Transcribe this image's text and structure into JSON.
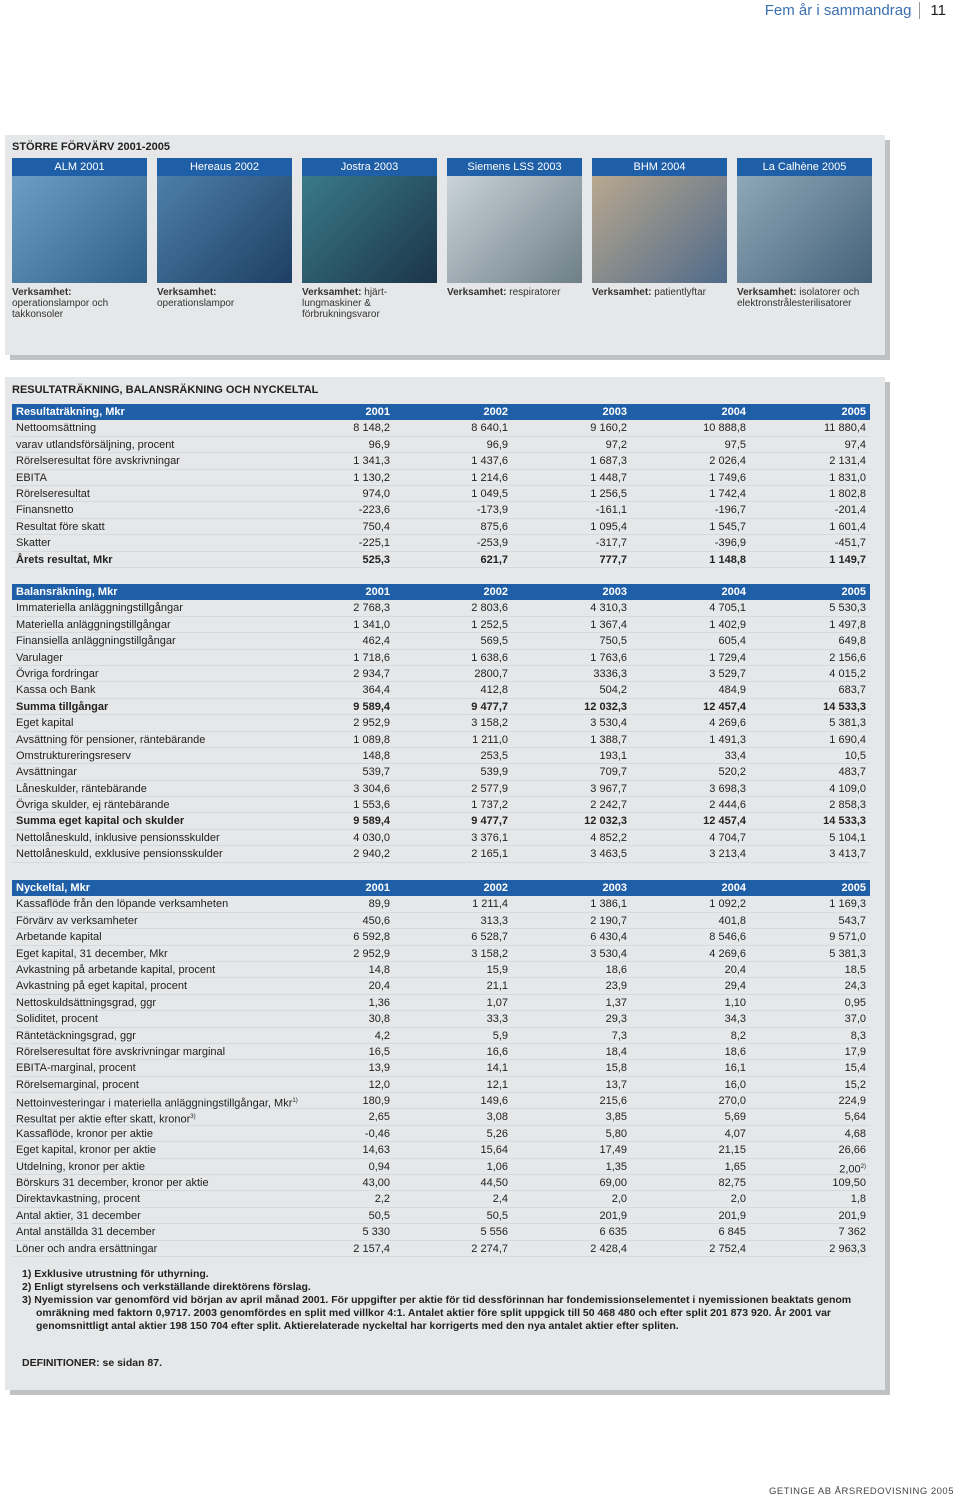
{
  "header": {
    "title": "Fem år i sammandrag",
    "page": "11"
  },
  "acquisitions": {
    "title": "STÖRRE FÖRVÄRV 2001-2005",
    "items": [
      {
        "name": "ALM 2001",
        "label": "Verksamhet:",
        "text": "operationslampor och takkonsoler"
      },
      {
        "name": "Hereaus 2002",
        "label": "Verksamhet:",
        "text": "operationslampor"
      },
      {
        "name": "Jostra 2003",
        "label": "Verksamhet:",
        "text": "hjärt-lungmaskiner & förbrukningsvaror"
      },
      {
        "name": "Siemens LSS 2003",
        "label": "Verksamhet:",
        "text": "respiratorer"
      },
      {
        "name": "BHM 2004",
        "label": "Verksamhet:",
        "text": "patientlyftar"
      },
      {
        "name": "La Calhène 2005",
        "label": "Verksamhet:",
        "text": "isolatorer och elektronstrålesterilisatorer"
      }
    ]
  },
  "section_title": "RESULTATRÄKNING, BALANSRÄKNING OCH NYCKELTAL",
  "tables": [
    {
      "header": [
        "Resultaträkning, Mkr",
        "2001",
        "2002",
        "2003",
        "2004",
        "2005"
      ],
      "rows": [
        {
          "cells": [
            "Nettoomsättning",
            "8 148,2",
            "8 640,1",
            "9 160,2",
            "10 888,8",
            "11 880,4"
          ]
        },
        {
          "cells": [
            "varav utlandsförsäljning, procent",
            "96,9",
            "96,9",
            "97,2",
            "97,5",
            "97,4"
          ]
        },
        {
          "cells": [
            "Rörelseresultat före avskrivningar",
            "1 341,3",
            "1 437,6",
            "1 687,3",
            "2 026,4",
            "2 131,4"
          ]
        },
        {
          "cells": [
            "EBITA",
            "1 130,2",
            "1 214,6",
            "1 448,7",
            "1 749,6",
            "1 831,0"
          ]
        },
        {
          "cells": [
            "Rörelseresultat",
            "974,0",
            "1 049,5",
            "1 256,5",
            "1 742,4",
            "1 802,8"
          ]
        },
        {
          "cells": [
            "Finansnetto",
            "-223,6",
            "-173,9",
            "-161,1",
            "-196,7",
            "-201,4"
          ]
        },
        {
          "cells": [
            "Resultat före skatt",
            "750,4",
            "875,6",
            "1 095,4",
            "1 545,7",
            "1 601,4"
          ]
        },
        {
          "cells": [
            "Skatter",
            "-225,1",
            "-253,9",
            "-317,7",
            "-396,9",
            "-451,7"
          ]
        },
        {
          "cells": [
            "Årets resultat, Mkr",
            "525,3",
            "621,7",
            "777,7",
            "1 148,8",
            "1 149,7"
          ],
          "bold": true
        }
      ]
    },
    {
      "header": [
        "Balansräkning, Mkr",
        "2001",
        "2002",
        "2003",
        "2004",
        "2005"
      ],
      "rows": [
        {
          "cells": [
            "Immateriella anläggningstillgångar",
            "2 768,3",
            "2 803,6",
            "4 310,3",
            "4 705,1",
            "5 530,3"
          ]
        },
        {
          "cells": [
            "Materiella anläggningstillgångar",
            "1 341,0",
            "1 252,5",
            "1 367,4",
            "1 402,9",
            "1 497,8"
          ]
        },
        {
          "cells": [
            "Finansiella anläggningstillgångar",
            "462,4",
            "569,5",
            "750,5",
            "605,4",
            "649,8"
          ]
        },
        {
          "cells": [
            "Varulager",
            "1 718,6",
            "1 638,6",
            "1 763,6",
            "1 729,4",
            "2 156,6"
          ]
        },
        {
          "cells": [
            "Övriga fordringar",
            "2 934,7",
            "2800,7",
            "3336,3",
            "3 529,7",
            "4 015,2"
          ]
        },
        {
          "cells": [
            "Kassa och Bank",
            "364,4",
            "412,8",
            "504,2",
            "484,9",
            "683,7"
          ]
        },
        {
          "cells": [
            "Summa tillgångar",
            "9 589,4",
            "9 477,7",
            "12 032,3",
            "12 457,4",
            "14 533,3"
          ],
          "bold": true
        },
        {
          "cells": [
            "Eget kapital",
            "2 952,9",
            "3 158,2",
            "3 530,4",
            "4 269,6",
            "5 381,3"
          ]
        },
        {
          "cells": [
            "Avsättning  för pensioner, räntebärande",
            "1 089,8",
            "1 211,0",
            "1 388,7",
            "1 491,3",
            "1 690,4"
          ]
        },
        {
          "cells": [
            "Omstruktureringsreserv",
            "148,8",
            "253,5",
            "193,1",
            "33,4",
            "10,5"
          ]
        },
        {
          "cells": [
            "Avsättningar",
            "539,7",
            "539,9",
            "709,7",
            "520,2",
            "483,7"
          ]
        },
        {
          "cells": [
            "Låneskulder, räntebärande",
            "3 304,6",
            "2 577,9",
            "3 967,7",
            "3 698,3",
            "4 109,0"
          ]
        },
        {
          "cells": [
            "Övriga skulder, ej räntebärande",
            "1 553,6",
            "1 737,2",
            "2 242,7",
            "2 444,6",
            "2 858,3"
          ]
        },
        {
          "cells": [
            "Summa eget kapital och skulder",
            "9 589,4",
            "9 477,7",
            "12 032,3",
            "12 457,4",
            "14 533,3"
          ],
          "bold": true
        },
        {
          "cells": [
            "Nettolåneskuld, inklusive pensionsskulder",
            "4 030,0",
            "3 376,1",
            "4 852,2",
            "4 704,7",
            "5 104,1"
          ]
        },
        {
          "cells": [
            "Nettolåneskuld, exklusive pensionsskulder",
            "2 940,2",
            "2 165,1",
            "3 463,5",
            "3 213,4",
            "3 413,7"
          ]
        }
      ]
    },
    {
      "header": [
        "Nyckeltal, Mkr",
        "2001",
        "2002",
        "2003",
        "2004",
        "2005"
      ],
      "rows": [
        {
          "cells": [
            "Kassaflöde från den löpande verksamheten",
            "89,9",
            "1 211,4",
            "1 386,1",
            "1 092,2",
            "1 169,3"
          ]
        },
        {
          "cells": [
            "Förvärv av verksamheter",
            "450,6",
            "313,3",
            "2 190,7",
            "401,8",
            "543,7"
          ]
        },
        {
          "cells": [
            "Arbetande kapital",
            "6 592,8",
            "6 528,7",
            "6 430,4",
            "8 546,6",
            "9 571,0"
          ]
        },
        {
          "cells": [
            "Eget kapital, 31 december, Mkr",
            "2 952,9",
            "3 158,2",
            "3 530,4",
            "4 269,6",
            "5 381,3"
          ]
        },
        {
          "cells": [
            "Avkastning på arbetande kapital, procent",
            "14,8",
            "15,9",
            "18,6",
            "20,4",
            "18,5"
          ]
        },
        {
          "cells": [
            "Avkastning på eget kapital, procent",
            "20,4",
            "21,1",
            "23,9",
            "29,4",
            "24,3"
          ]
        },
        {
          "cells": [
            "Nettoskuldsättningsgrad, ggr",
            "1,36",
            "1,07",
            "1,37",
            "1,10",
            "0,95"
          ]
        },
        {
          "cells": [
            "Soliditet, procent",
            "30,8",
            "33,3",
            "29,3",
            "34,3",
            "37,0"
          ]
        },
        {
          "cells": [
            "Räntetäckningsgrad, ggr",
            "4,2",
            "5,9",
            "7,3",
            "8,2",
            "8,3"
          ]
        },
        {
          "cells": [
            "Rörelseresultat före avskrivningar marginal",
            "16,5",
            "16,6",
            "18,4",
            "18,6",
            "17,9"
          ]
        },
        {
          "cells": [
            "EBITA-marginal, procent",
            "13,9",
            "14,1",
            "15,8",
            "16,1",
            "15,4"
          ]
        },
        {
          "cells": [
            "Rörelsemarginal, procent",
            "12,0",
            "12,1",
            "13,7",
            "16,0",
            "15,2"
          ]
        },
        {
          "cells": [
            {
              "text": "Nettoinvesteringar i materiella anläggningstillgångar, Mkr",
              "sup": "1)"
            },
            "180,9",
            "149,6",
            "215,6",
            "270,0",
            "224,9"
          ]
        },
        {
          "cells": [
            {
              "text": "Resultat per aktie efter skatt, kronor",
              "sup": "3)"
            },
            "2,65",
            "3,08",
            "3,85",
            "5,69",
            "5,64"
          ]
        },
        {
          "cells": [
            "Kassaflöde, kronor per aktie",
            "-0,46",
            "5,26",
            "5,80",
            "4,07",
            "4,68"
          ]
        },
        {
          "cells": [
            "Eget kapital, kronor per aktie",
            "14,63",
            "15,64",
            "17,49",
            "21,15",
            "26,66"
          ]
        },
        {
          "cells": [
            "Utdelning, kronor per aktie",
            "0,94",
            "1,06",
            "1,35",
            "1,65",
            {
              "text": "2,00",
              "sup": "2)"
            }
          ]
        },
        {
          "cells": [
            "Börskurs 31 december, kronor per aktie",
            "43,00",
            "44,50",
            "69,00",
            "82,75",
            "109,50"
          ]
        },
        {
          "cells": [
            "Direktavkastning, procent",
            "2,2",
            "2,4",
            "2,0",
            "2,0",
            "1,8"
          ]
        },
        {
          "cells": [
            "Antal aktier, 31 december",
            "50,5",
            "50,5",
            "201,9",
            "201,9",
            "201,9"
          ]
        },
        {
          "cells": [
            "Antal anställda 31 december",
            "5 330",
            "5 556",
            "6 635",
            "6 845",
            "7 362"
          ]
        },
        {
          "cells": [
            "Löner och andra ersättningar",
            "2 157,4",
            "2 274,7",
            "2 428,4",
            "2 752,4",
            "2 963,3"
          ]
        }
      ]
    }
  ],
  "footnotes": [
    "1)  Exklusive utrustning för uthyrning.",
    "2)  Enligt styrelsens och verkställande direktörens förslag.",
    "3)  Nyemission var genomförd vid början av april månad 2001. För uppgifter per aktie för tid dessförinnan har fondemissionselementet i nyemissionen beaktats genom omräkning med faktorn 0,9717. 2003 genomfördes en split med villkor 4:1. Antalet aktier före split uppgick till 50 468 480 och efter split 201 873 920. År 2001 var genomsnittligt antal aktier 198 150 704 efter split. Aktierelaterade nyckeltal har korrigerts med den nya antalet aktier efter spliten."
  ],
  "definitions": "DEFINITIONER: se sidan 87.",
  "footer": "GETINGE AB ÅRSREDOVISNING 2005"
}
